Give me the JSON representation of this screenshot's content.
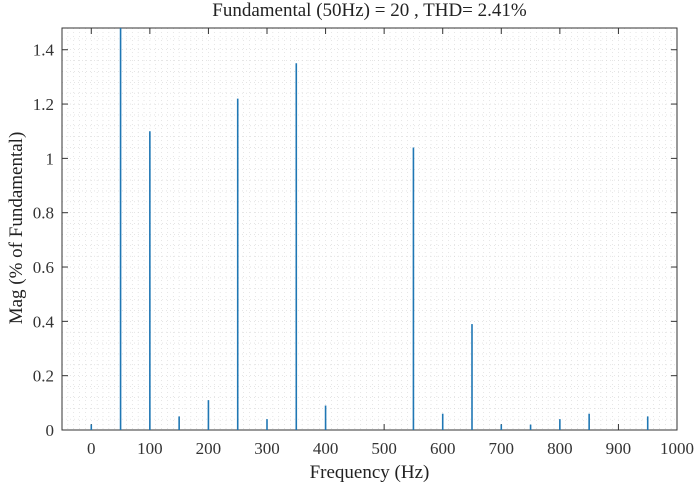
{
  "chart_data": {
    "type": "bar",
    "title": "Fundamental (50Hz) = 20 , THD= 2.41%",
    "xlabel": "Frequency (Hz)",
    "ylabel": "Mag (% of Fundamental)",
    "xlim": [
      -50,
      1000
    ],
    "ylim": [
      0,
      1.48
    ],
    "xticks": [
      0,
      100,
      200,
      300,
      400,
      500,
      600,
      700,
      800,
      900,
      1000
    ],
    "yticks": [
      0,
      0.2,
      0.4,
      0.6,
      0.8,
      1,
      1.2,
      1.4
    ],
    "grid": "minor-dotted",
    "color": "#1f77b4",
    "series": [
      {
        "x": [
          0,
          50,
          100,
          150,
          200,
          250,
          300,
          350,
          400,
          550,
          600,
          650,
          700,
          750,
          800,
          850,
          950
        ],
        "values": [
          0.02,
          1.48,
          1.1,
          0.05,
          0.11,
          1.22,
          0.04,
          1.35,
          0.09,
          1.04,
          0.06,
          0.39,
          0.02,
          0.02,
          0.04,
          0.06,
          0.05
        ]
      }
    ]
  }
}
